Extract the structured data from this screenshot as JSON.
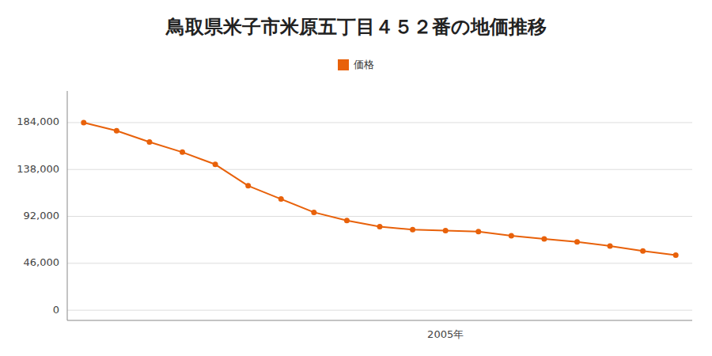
{
  "chart_data": {
    "type": "line",
    "title": "鳥取県米子市米原五丁目４５２番の地価推移",
    "categories": [
      null,
      null,
      null,
      null,
      null,
      null,
      null,
      null,
      null,
      null,
      null,
      "2005年",
      null,
      null,
      null,
      null,
      null,
      null,
      null
    ],
    "series": [
      {
        "name": "価格",
        "color": "#e8610a",
        "marker": "circle",
        "values": [
          184000,
          176000,
          165000,
          155000,
          143000,
          122000,
          109000,
          96000,
          88000,
          82000,
          79000,
          78000,
          77000,
          73000,
          70000,
          67000,
          63000,
          58000,
          54000
        ]
      }
    ],
    "ylim": [
      -10000,
      215000
    ],
    "yticks": [
      0,
      {
        "value": 46000,
        "label": "46,000"
      },
      {
        "value": 92000,
        "label": "92,000"
      },
      {
        "value": 138000,
        "label": "138,000"
      },
      {
        "value": 184000,
        "label": "184,000"
      }
    ],
    "grid": true,
    "legend": "top"
  }
}
